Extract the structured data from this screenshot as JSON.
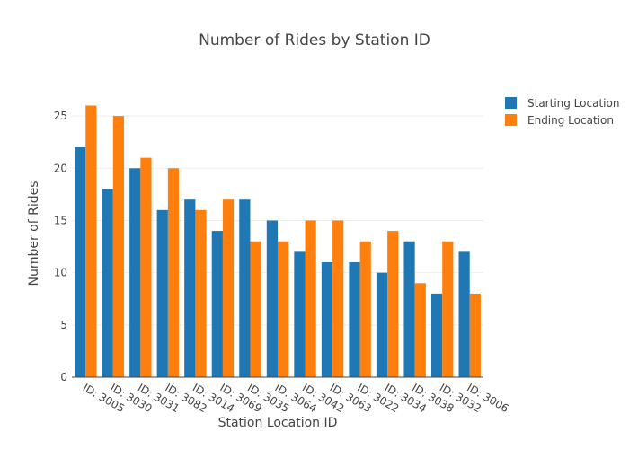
{
  "chart_data": {
    "type": "bar",
    "title": "Number of Rides by Station ID",
    "xlabel": "Station Location ID",
    "ylabel": "Number of Rides",
    "ylim": [
      0,
      27.5
    ],
    "yticks": [
      0,
      5,
      10,
      15,
      20,
      25
    ],
    "grid": true,
    "legend_position": "top-right",
    "categories": [
      "ID: 3005",
      "ID: 3030",
      "ID: 3031",
      "ID: 3082",
      "ID: 3014",
      "ID: 3069",
      "ID: 3035",
      "ID: 3064",
      "ID: 3042",
      "ID: 3063",
      "ID: 3022",
      "ID: 3034",
      "ID: 3038",
      "ID: 3032",
      "ID: 3006"
    ],
    "series": [
      {
        "name": "Starting Location",
        "color": "#1f77b4",
        "values": [
          22,
          18,
          20,
          16,
          17,
          14,
          17,
          15,
          12,
          11,
          11,
          10,
          13,
          8,
          12
        ]
      },
      {
        "name": "Ending Location",
        "color": "#ff7f0e",
        "values": [
          26,
          25,
          21,
          20,
          16,
          17,
          13,
          13,
          15,
          15,
          13,
          14,
          9,
          13,
          8
        ]
      }
    ]
  }
}
